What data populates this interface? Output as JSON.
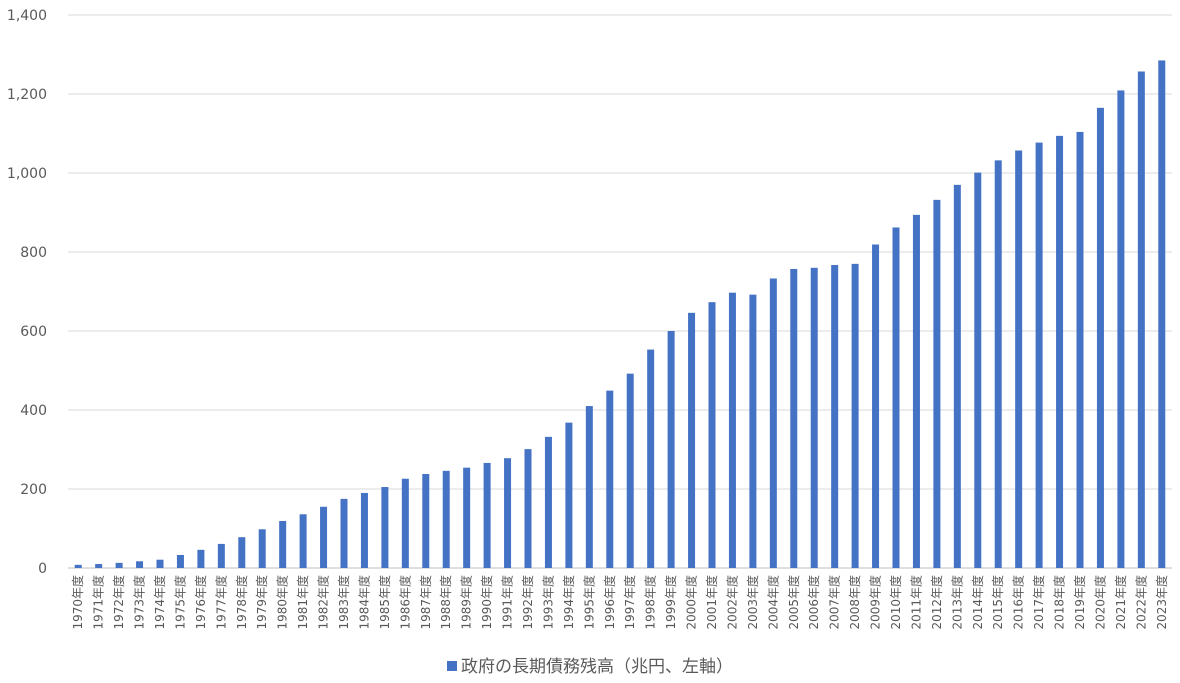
{
  "chart_data": {
    "type": "bar",
    "title": "",
    "xlabel": "",
    "ylabel": "",
    "ylim": [
      0,
      1400
    ],
    "y_ticks": [
      "0",
      "200",
      "400",
      "600",
      "800",
      "1,000",
      "1,200",
      "1,400"
    ],
    "grid": true,
    "legend_position": "bottom",
    "bar_color": "#4472c4",
    "categories": [
      "1970年度",
      "1971年度",
      "1972年度",
      "1973年度",
      "1974年度",
      "1975年度",
      "1976年度",
      "1977年度",
      "1978年度",
      "1979年度",
      "1980年度",
      "1981年度",
      "1982年度",
      "1983年度",
      "1984年度",
      "1985年度",
      "1986年度",
      "1987年度",
      "1988年度",
      "1989年度",
      "1990年度",
      "1991年度",
      "1992年度",
      "1993年度",
      "1994年度",
      "1995年度",
      "1996年度",
      "1997年度",
      "1998年度",
      "1999年度",
      "2000年度",
      "2001年度",
      "2002年度",
      "2003年度",
      "2004年度",
      "2005年度",
      "2006年度",
      "2007年度",
      "2008年度",
      "2009年度",
      "2010年度",
      "2011年度",
      "2012年度",
      "2013年度",
      "2014年度",
      "2015年度",
      "2016年度",
      "2017年度",
      "2018年度",
      "2019年度",
      "2020年度",
      "2021年度",
      "2022年度",
      "2023年度"
    ],
    "series": [
      {
        "name": "政府の長期債務残高（兆円、左軸）",
        "values": [
          8,
          10,
          13,
          17,
          21,
          33,
          46,
          61,
          78,
          98,
          119,
          136,
          155,
          175,
          190,
          205,
          226,
          238,
          246,
          254,
          266,
          278,
          301,
          332,
          368,
          410,
          449,
          492,
          553,
          600,
          646,
          673,
          697,
          692,
          733,
          757,
          760,
          767,
          770,
          819,
          862,
          894,
          932,
          970,
          1001,
          1032,
          1057,
          1077,
          1094,
          1104,
          1165,
          1209,
          1257,
          1285
        ]
      }
    ]
  }
}
